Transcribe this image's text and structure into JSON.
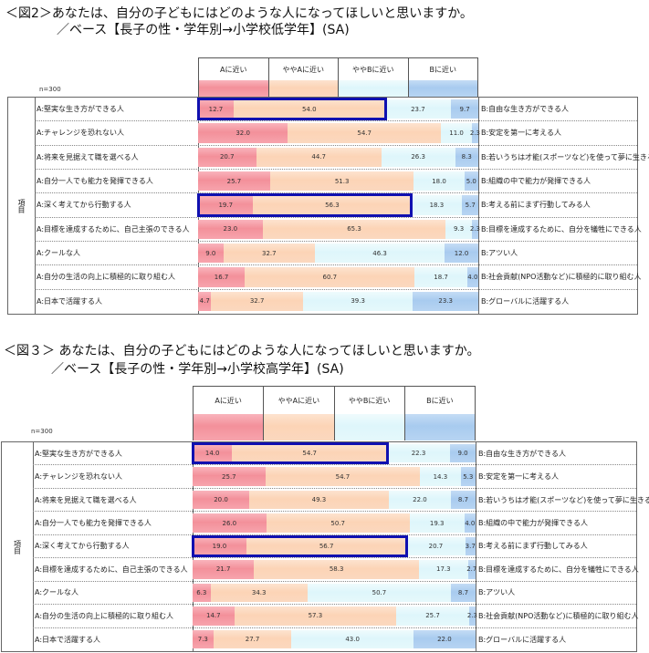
{
  "colors": {
    "a_close": "#f3909a",
    "somewhat_a": "#fcd4b6",
    "somewhat_b": "#def6fb",
    "b_close": "#a8cbef",
    "highlight": "#1010b0"
  },
  "chart_data": [
    {
      "type": "bar",
      "orientation": "horizontal-stacked-100",
      "title": "＜図2＞あなたは、自分の子どもにはどのような人になってほしいと思いますか。",
      "subtitle": "／ベース【長子の性・学年別→小学校低学年】(SA)",
      "n_label": "n=300",
      "group_label": "項目",
      "legend": [
        "Aに近い",
        "ややAに近い",
        "ややBに近い",
        "Bに近い"
      ],
      "legend_placement": "top",
      "categories": [
        "A:堅実な生き方ができる人",
        "A:チャレンジを恐れない人",
        "A:将来を見据えて職を選べる人",
        "A:自分一人でも能力を発揮できる人",
        "A:深く考えてから行動する人",
        "A:目標を達成するために、自己主張のできる人",
        "A:クールな人",
        "A:自分の生活の向上に積極的に取り組む人",
        "A:日本で活躍する人"
      ],
      "right_labels": [
        "B:自由な生き方ができる人",
        "B:安定を第一に考える人",
        "B:若いうちは才能(スポーツなど)を使って夢に生きる人",
        "B:組織の中で能力が発揮できる人",
        "B:考える前にまず行動してみる人",
        "B:目標を達成するために、自分を犠牲にできる人",
        "B:アツい人",
        "B:社会貢献(NPO活動など)に積極的に取り組む人",
        "B:グローバルに活躍する人"
      ],
      "series": [
        {
          "name": "Aに近い",
          "values": [
            "12.7",
            "32.0",
            "20.7",
            "25.7",
            "19.7",
            "23.0",
            "9.0",
            "16.7",
            "4.7"
          ]
        },
        {
          "name": "ややAに近い",
          "values": [
            "54.0",
            "54.7",
            "44.7",
            "51.3",
            "56.3",
            "65.3",
            "32.7",
            "60.7",
            "32.7"
          ]
        },
        {
          "name": "ややBに近い",
          "values": [
            "23.7",
            "11.0",
            "26.3",
            "18.0",
            "18.3",
            "9.3",
            "46.3",
            "18.7",
            "39.3"
          ]
        },
        {
          "name": "Bに近い",
          "values": [
            "9.7",
            "2.3",
            "8.3",
            "5.0",
            "5.7",
            "2.3",
            "12.0",
            "4.0",
            "23.3"
          ]
        }
      ],
      "highlighted_rows": [
        0,
        4
      ],
      "xlim": [
        0,
        100
      ]
    },
    {
      "type": "bar",
      "orientation": "horizontal-stacked-100",
      "title": "＜図３＞ あなたは、自分の子どもにはどのような人になってほしいと思いますか。",
      "subtitle": "／ベース【長子の性・学年別→小学校高学年】(SA)",
      "n_label": "n=300",
      "group_label": "項目",
      "legend": [
        "Aに近い",
        "ややAに近い",
        "ややBに近い",
        "Bに近い"
      ],
      "legend_placement": "top",
      "categories": [
        "A:堅実な生き方ができる人",
        "A:チャレンジを恐れない人",
        "A:将来を見据えて職を選べる人",
        "A:自分一人でも能力を発揮できる人",
        "A:深く考えてから行動する人",
        "A:目標を達成するために、自己主張のできる人",
        "A:クールな人",
        "A:自分の生活の向上に積極的に取り組む人",
        "A:日本で活躍する人"
      ],
      "right_labels": [
        "B:自由な生き方ができる人",
        "B:安定を第一に考える人",
        "B:若いうちは才能(スポーツなど)を使って夢に生きる人",
        "B:組織の中で能力が発揮できる人",
        "B:考える前にまず行動してみる人",
        "B:目標を達成するために、自分を犠牲にできる人",
        "B:アツい人",
        "B:社会貢献(NPO活動など)に積極的に取り組む人",
        "B:グローバルに活躍する人"
      ],
      "series": [
        {
          "name": "Aに近い",
          "values": [
            "14.0",
            "25.7",
            "20.0",
            "26.0",
            "19.0",
            "21.7",
            "6.3",
            "14.7",
            "7.3"
          ]
        },
        {
          "name": "ややAに近い",
          "values": [
            "54.7",
            "54.7",
            "49.3",
            "50.7",
            "56.7",
            "58.3",
            "34.3",
            "57.3",
            "27.7"
          ]
        },
        {
          "name": "ややBに近い",
          "values": [
            "22.3",
            "14.3",
            "22.0",
            "19.3",
            "20.7",
            "17.3",
            "50.7",
            "25.7",
            "43.0"
          ]
        },
        {
          "name": "Bに近い",
          "values": [
            "9.0",
            "5.3",
            "8.7",
            "4.0",
            "3.7",
            "2.7",
            "8.7",
            "2.3",
            "22.0"
          ]
        }
      ],
      "highlighted_rows": [
        0,
        4
      ],
      "xlim": [
        0,
        100
      ]
    }
  ]
}
